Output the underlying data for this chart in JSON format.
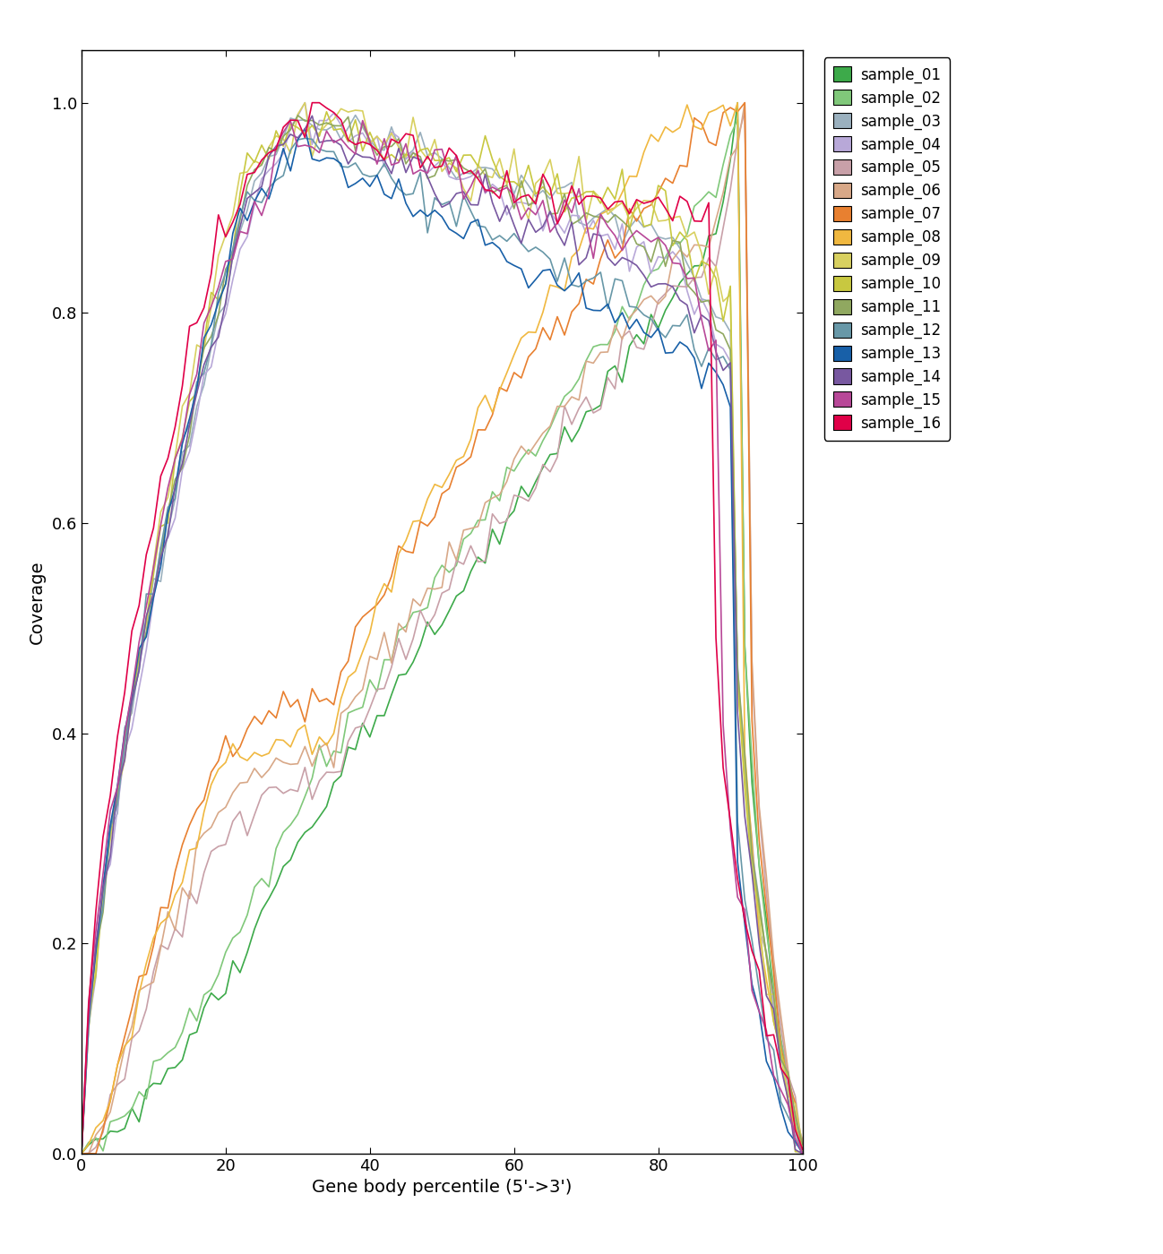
{
  "samples": [
    "sample_01",
    "sample_02",
    "sample_03",
    "sample_04",
    "sample_05",
    "sample_06",
    "sample_07",
    "sample_08",
    "sample_09",
    "sample_10",
    "sample_11",
    "sample_12",
    "sample_13",
    "sample_14",
    "sample_15",
    "sample_16"
  ],
  "colors": {
    "sample_01": "#3daa4a",
    "sample_02": "#80c87a",
    "sample_03": "#9ab0be",
    "sample_04": "#b8a8d8",
    "sample_05": "#c8a0a8",
    "sample_06": "#d8a888",
    "sample_07": "#e88030",
    "sample_08": "#f0b840",
    "sample_09": "#d8d060",
    "sample_10": "#c8c840",
    "sample_11": "#90a860",
    "sample_12": "#6898a8",
    "sample_13": "#1860a8",
    "sample_14": "#7858a0",
    "sample_15": "#b84898",
    "sample_16": "#e00048"
  },
  "xlabel": "Gene body percentile (5'->3')",
  "ylabel": "Coverage",
  "xlim": [
    0,
    100
  ],
  "ylim": [
    0.0,
    1.05
  ],
  "xticks": [
    0,
    20,
    40,
    60,
    80,
    100
  ],
  "yticks": [
    0.0,
    0.2,
    0.4,
    0.6,
    0.8,
    1.0
  ],
  "figwidth": 12.98,
  "figheight": 14.0
}
